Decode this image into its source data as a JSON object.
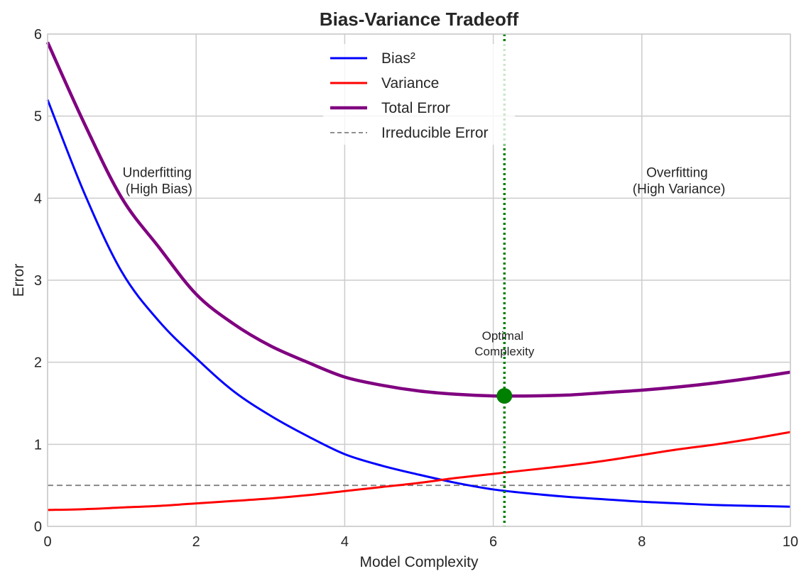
{
  "chart_data": {
    "type": "line",
    "title": "Bias-Variance Tradeoff",
    "xlabel": "Model Complexity",
    "ylabel": "Error",
    "xlim": [
      0,
      10
    ],
    "ylim": [
      0,
      6
    ],
    "xticks": [
      0,
      2,
      4,
      6,
      8,
      10
    ],
    "yticks": [
      0,
      1,
      2,
      3,
      4,
      5,
      6
    ],
    "grid": true,
    "legend_position": "top-center",
    "x": [
      0,
      0.5,
      1,
      1.5,
      2,
      2.5,
      3,
      3.5,
      4,
      4.5,
      5,
      5.5,
      6,
      6.5,
      7,
      7.5,
      8,
      8.5,
      9,
      9.5,
      10
    ],
    "series": [
      {
        "name": "Bias²",
        "color": "#0000ff",
        "style": "solid",
        "values": [
          5.2,
          4.05,
          3.1,
          2.5,
          2.05,
          1.65,
          1.35,
          1.1,
          0.88,
          0.74,
          0.63,
          0.53,
          0.45,
          0.4,
          0.36,
          0.33,
          0.3,
          0.28,
          0.26,
          0.25,
          0.24
        ]
      },
      {
        "name": "Variance",
        "color": "#ff0000",
        "style": "solid",
        "values": [
          0.2,
          0.21,
          0.23,
          0.25,
          0.28,
          0.31,
          0.34,
          0.38,
          0.43,
          0.48,
          0.53,
          0.59,
          0.64,
          0.69,
          0.74,
          0.8,
          0.87,
          0.94,
          1.0,
          1.07,
          1.15
        ]
      },
      {
        "name": "Total Error",
        "color": "#800080",
        "style": "solid-thick",
        "values": [
          5.9,
          4.9,
          4.0,
          3.4,
          2.83,
          2.47,
          2.2,
          2.0,
          1.82,
          1.72,
          1.65,
          1.61,
          1.59,
          1.59,
          1.6,
          1.63,
          1.66,
          1.7,
          1.75,
          1.81,
          1.88
        ]
      },
      {
        "name": "Irreducible Error",
        "color": "#808080",
        "style": "dashed",
        "values": [
          0.5,
          0.5,
          0.5,
          0.5,
          0.5,
          0.5,
          0.5,
          0.5,
          0.5,
          0.5,
          0.5,
          0.5,
          0.5,
          0.5,
          0.5,
          0.5,
          0.5,
          0.5,
          0.5,
          0.5,
          0.5
        ]
      }
    ],
    "optimal": {
      "x": 6.15,
      "y": 1.59,
      "marker_color": "#008000",
      "label_line1": "Optimal",
      "label_line2": "Complexity"
    },
    "annotations": [
      {
        "line1": "Underfitting",
        "line2": "(High Bias)",
        "x": 1.5,
        "y": 4.25
      },
      {
        "line1": "Overfitting",
        "line2": "(High Variance)",
        "x": 8.5,
        "y": 4.25
      }
    ]
  }
}
